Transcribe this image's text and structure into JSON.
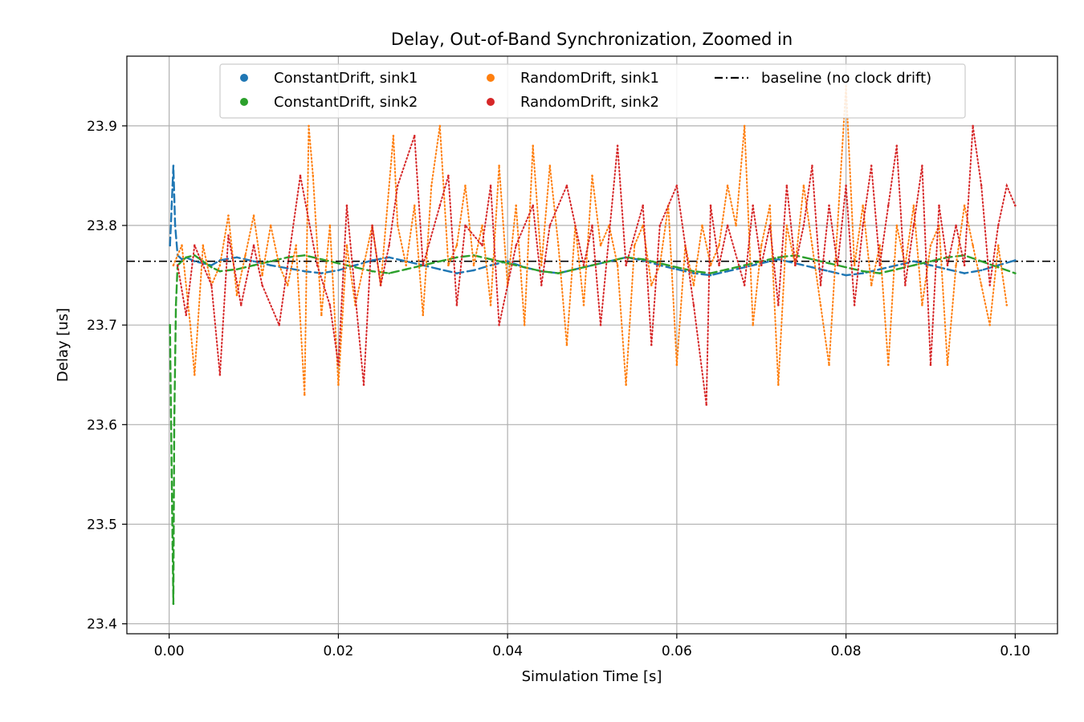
{
  "chart_data": {
    "type": "scatter",
    "title": "Delay, Out-of-Band Synchronization, Zoomed in",
    "xlabel": "Simulation Time [s]",
    "ylabel": "Delay [us]",
    "xlim": [
      -0.005,
      0.105
    ],
    "ylim": [
      23.39,
      23.97
    ],
    "xticks": [
      0.0,
      0.02,
      0.04,
      0.06,
      0.08,
      0.1
    ],
    "xtick_labels": [
      "0.00",
      "0.02",
      "0.04",
      "0.06",
      "0.08",
      "0.10"
    ],
    "yticks": [
      23.4,
      23.5,
      23.6,
      23.7,
      23.8,
      23.9
    ],
    "ytick_labels": [
      "23.4",
      "23.5",
      "23.6",
      "23.7",
      "23.8",
      "23.9"
    ],
    "grid": true,
    "legend_position": "top-center",
    "legend_columns": 3,
    "baseline": {
      "name": "baseline (no clock drift)",
      "y": 23.764,
      "style": "dash-dot",
      "color": "#000000"
    },
    "series": [
      {
        "name": "ConstantDrift, sink1",
        "color": "#1f77b4",
        "x": [
          0.0001,
          0.0002,
          0.0003,
          0.0004,
          0.0005,
          0.0007,
          0.001,
          0.0015,
          0.002,
          0.003,
          0.004,
          0.005,
          0.006,
          0.008,
          0.01,
          0.012,
          0.014,
          0.016,
          0.018,
          0.02,
          0.022,
          0.024,
          0.026,
          0.028,
          0.03,
          0.032,
          0.034,
          0.036,
          0.038,
          0.04,
          0.042,
          0.044,
          0.046,
          0.048,
          0.05,
          0.052,
          0.054,
          0.056,
          0.058,
          0.06,
          0.062,
          0.064,
          0.066,
          0.068,
          0.07,
          0.072,
          0.074,
          0.076,
          0.078,
          0.08,
          0.082,
          0.084,
          0.086,
          0.088,
          0.09,
          0.092,
          0.094,
          0.096,
          0.098,
          0.1
        ],
        "y": [
          23.78,
          23.8,
          23.82,
          23.84,
          23.86,
          23.8,
          23.77,
          23.766,
          23.768,
          23.764,
          23.762,
          23.76,
          23.765,
          23.768,
          23.764,
          23.76,
          23.757,
          23.754,
          23.752,
          23.755,
          23.76,
          23.765,
          23.768,
          23.764,
          23.76,
          23.756,
          23.752,
          23.755,
          23.76,
          23.764,
          23.758,
          23.754,
          23.752,
          23.756,
          23.76,
          23.764,
          23.768,
          23.765,
          23.76,
          23.756,
          23.752,
          23.75,
          23.754,
          23.758,
          23.762,
          23.766,
          23.762,
          23.758,
          23.754,
          23.75,
          23.752,
          23.756,
          23.76,
          23.764,
          23.76,
          23.756,
          23.752,
          23.755,
          23.76,
          23.765
        ]
      },
      {
        "name": "ConstantDrift, sink2",
        "color": "#2ca02c",
        "x": [
          0.0001,
          0.0002,
          0.0003,
          0.0004,
          0.0005,
          0.0006,
          0.0008,
          0.001,
          0.0015,
          0.002,
          0.003,
          0.004,
          0.005,
          0.006,
          0.008,
          0.01,
          0.012,
          0.014,
          0.016,
          0.018,
          0.02,
          0.022,
          0.024,
          0.026,
          0.028,
          0.03,
          0.032,
          0.034,
          0.036,
          0.038,
          0.04,
          0.042,
          0.044,
          0.046,
          0.048,
          0.05,
          0.052,
          0.054,
          0.056,
          0.058,
          0.06,
          0.062,
          0.064,
          0.066,
          0.068,
          0.07,
          0.072,
          0.074,
          0.076,
          0.078,
          0.08,
          0.082,
          0.084,
          0.086,
          0.088,
          0.09,
          0.092,
          0.094,
          0.096,
          0.098,
          0.1
        ],
        "y": [
          23.7,
          23.62,
          23.55,
          23.48,
          23.42,
          23.6,
          23.72,
          23.76,
          23.764,
          23.768,
          23.77,
          23.764,
          23.758,
          23.754,
          23.756,
          23.76,
          23.764,
          23.768,
          23.77,
          23.766,
          23.762,
          23.758,
          23.754,
          23.752,
          23.756,
          23.76,
          23.764,
          23.768,
          23.77,
          23.766,
          23.762,
          23.758,
          23.754,
          23.752,
          23.756,
          23.76,
          23.764,
          23.768,
          23.766,
          23.762,
          23.758,
          23.754,
          23.752,
          23.756,
          23.76,
          23.764,
          23.768,
          23.77,
          23.766,
          23.762,
          23.758,
          23.754,
          23.752,
          23.756,
          23.76,
          23.764,
          23.768,
          23.77,
          23.764,
          23.758,
          23.752
        ]
      },
      {
        "name": "RandomDrift, sink1",
        "color": "#ff7f0e",
        "x": [
          0.0005,
          0.0015,
          0.0025,
          0.003,
          0.004,
          0.005,
          0.006,
          0.007,
          0.008,
          0.009,
          0.01,
          0.011,
          0.012,
          0.013,
          0.014,
          0.015,
          0.016,
          0.0165,
          0.017,
          0.018,
          0.019,
          0.02,
          0.021,
          0.022,
          0.023,
          0.024,
          0.025,
          0.0265,
          0.027,
          0.028,
          0.029,
          0.03,
          0.031,
          0.032,
          0.033,
          0.034,
          0.035,
          0.036,
          0.037,
          0.038,
          0.039,
          0.04,
          0.041,
          0.042,
          0.043,
          0.044,
          0.045,
          0.046,
          0.047,
          0.048,
          0.049,
          0.05,
          0.051,
          0.052,
          0.053,
          0.054,
          0.055,
          0.056,
          0.057,
          0.058,
          0.059,
          0.06,
          0.061,
          0.062,
          0.063,
          0.064,
          0.065,
          0.066,
          0.067,
          0.068,
          0.069,
          0.07,
          0.071,
          0.072,
          0.073,
          0.074,
          0.075,
          0.076,
          0.077,
          0.078,
          0.079,
          0.08,
          0.081,
          0.082,
          0.083,
          0.084,
          0.085,
          0.086,
          0.087,
          0.088,
          0.089,
          0.09,
          0.091,
          0.092,
          0.093,
          0.094,
          0.095,
          0.096,
          0.097,
          0.098,
          0.099
        ],
        "y": [
          23.76,
          23.78,
          23.7,
          23.65,
          23.78,
          23.74,
          23.76,
          23.81,
          23.73,
          23.77,
          23.81,
          23.75,
          23.8,
          23.76,
          23.74,
          23.78,
          23.63,
          23.9,
          23.85,
          23.71,
          23.8,
          23.64,
          23.78,
          23.72,
          23.76,
          23.8,
          23.74,
          23.89,
          23.8,
          23.76,
          23.82,
          23.71,
          23.84,
          23.9,
          23.76,
          23.78,
          23.84,
          23.76,
          23.8,
          23.72,
          23.86,
          23.74,
          23.82,
          23.7,
          23.88,
          23.76,
          23.86,
          23.78,
          23.68,
          23.8,
          23.72,
          23.85,
          23.78,
          23.8,
          23.76,
          23.64,
          23.78,
          23.8,
          23.74,
          23.76,
          23.82,
          23.66,
          23.78,
          23.74,
          23.8,
          23.76,
          23.78,
          23.84,
          23.8,
          23.9,
          23.7,
          23.78,
          23.82,
          23.64,
          23.8,
          23.76,
          23.84,
          23.78,
          23.72,
          23.66,
          23.8,
          23.94,
          23.76,
          23.82,
          23.74,
          23.78,
          23.66,
          23.8,
          23.76,
          23.82,
          23.72,
          23.78,
          23.8,
          23.66,
          23.76,
          23.82,
          23.78,
          23.74,
          23.7,
          23.78,
          23.72
        ]
      },
      {
        "name": "RandomDrift, sink2",
        "color": "#d62728",
        "x": [
          0.001,
          0.002,
          0.003,
          0.005,
          0.006,
          0.007,
          0.0085,
          0.01,
          0.011,
          0.013,
          0.0155,
          0.0175,
          0.019,
          0.02,
          0.021,
          0.023,
          0.024,
          0.025,
          0.026,
          0.027,
          0.029,
          0.03,
          0.032,
          0.033,
          0.034,
          0.035,
          0.037,
          0.038,
          0.039,
          0.041,
          0.043,
          0.044,
          0.045,
          0.047,
          0.049,
          0.05,
          0.051,
          0.053,
          0.054,
          0.056,
          0.057,
          0.058,
          0.06,
          0.062,
          0.0635,
          0.064,
          0.065,
          0.066,
          0.068,
          0.069,
          0.07,
          0.071,
          0.072,
          0.073,
          0.074,
          0.075,
          0.076,
          0.077,
          0.078,
          0.079,
          0.08,
          0.081,
          0.082,
          0.083,
          0.084,
          0.085,
          0.086,
          0.087,
          0.088,
          0.089,
          0.09,
          0.091,
          0.092,
          0.093,
          0.094,
          0.095,
          0.096,
          0.097,
          0.098,
          0.099,
          0.1
        ],
        "y": [
          23.76,
          23.71,
          23.78,
          23.74,
          23.65,
          23.79,
          23.72,
          23.78,
          23.74,
          23.7,
          23.85,
          23.76,
          23.72,
          23.66,
          23.82,
          23.64,
          23.8,
          23.74,
          23.78,
          23.84,
          23.89,
          23.76,
          23.82,
          23.85,
          23.72,
          23.8,
          23.78,
          23.84,
          23.7,
          23.78,
          23.82,
          23.74,
          23.8,
          23.84,
          23.76,
          23.8,
          23.7,
          23.88,
          23.76,
          23.82,
          23.68,
          23.8,
          23.84,
          23.72,
          23.62,
          23.82,
          23.76,
          23.8,
          23.74,
          23.82,
          23.76,
          23.8,
          23.72,
          23.84,
          23.76,
          23.8,
          23.86,
          23.74,
          23.82,
          23.76,
          23.84,
          23.72,
          23.8,
          23.86,
          23.76,
          23.82,
          23.88,
          23.74,
          23.8,
          23.86,
          23.66,
          23.82,
          23.76,
          23.8,
          23.76,
          23.9,
          23.84,
          23.74,
          23.8,
          23.84,
          23.82
        ]
      }
    ]
  }
}
